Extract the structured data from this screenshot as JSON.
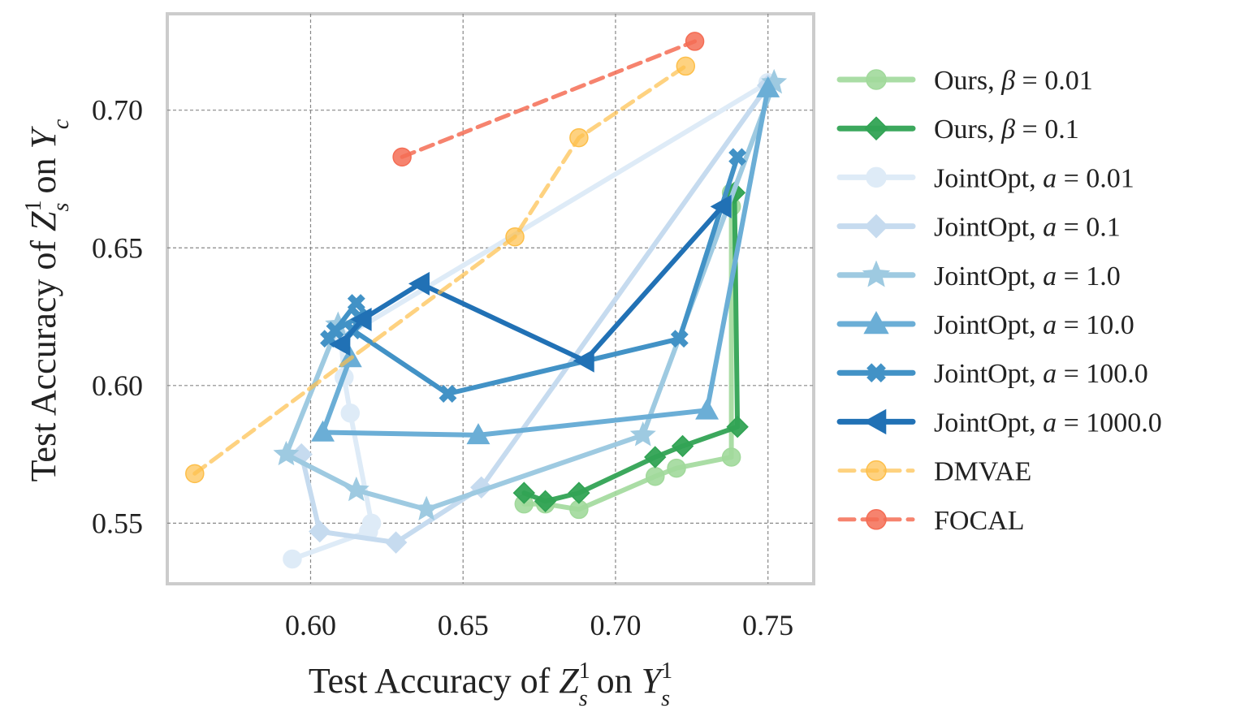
{
  "chart_data": {
    "type": "line",
    "xlabel_parts": [
      "Test Accuracy of ",
      "Z",
      "1",
      "s",
      " on ",
      "Y",
      "1",
      "s"
    ],
    "ylabel_parts": [
      "Test Accuracy of ",
      "Z",
      "1",
      "s",
      " on ",
      "Y",
      "c"
    ],
    "xlim": [
      0.553,
      0.765
    ],
    "ylim": [
      0.528,
      0.735
    ],
    "xticks": [
      0.6,
      0.65,
      0.7,
      0.75
    ],
    "yticks": [
      0.55,
      0.6,
      0.65,
      0.7
    ],
    "xtick_labels": [
      "0.60",
      "0.65",
      "0.70",
      "0.75"
    ],
    "ytick_labels": [
      "0.55",
      "0.60",
      "0.65",
      "0.70"
    ],
    "grid": true,
    "legend_position": "outside-right",
    "series": [
      {
        "name": "Ours, β = 0.01",
        "label_main": "Ours, ",
        "label_var": "β",
        "label_val": " = 0.01",
        "color": "#a1d99b",
        "marker": "circle",
        "dashed": false,
        "lw": 6,
        "opacity": 0.9,
        "x": [
          0.67,
          0.677,
          0.688,
          0.713,
          0.72,
          0.738,
          0.738,
          0.738
        ],
        "y": [
          0.557,
          0.557,
          0.555,
          0.567,
          0.57,
          0.574,
          0.665,
          0.67
        ]
      },
      {
        "name": "Ours, β = 0.1",
        "label_main": "Ours, ",
        "label_var": "β",
        "label_val": " = 0.1",
        "color": "#31a354",
        "marker": "diamond",
        "dashed": false,
        "lw": 6,
        "opacity": 0.95,
        "x": [
          0.67,
          0.677,
          0.688,
          0.713,
          0.722,
          0.74,
          0.739
        ],
        "y": [
          0.561,
          0.558,
          0.561,
          0.574,
          0.578,
          0.585,
          0.67
        ]
      },
      {
        "name": "JointOpt, a = 0.01",
        "label_main": "JointOpt, ",
        "label_var": "a",
        "label_val": " = 0.01",
        "color": "#deebf7",
        "marker": "circle",
        "dashed": false,
        "lw": 6,
        "opacity": 1,
        "x": [
          0.594,
          0.619,
          0.62,
          0.613,
          0.611,
          0.61,
          0.75
        ],
        "y": [
          0.537,
          0.547,
          0.55,
          0.59,
          0.603,
          0.617,
          0.71
        ]
      },
      {
        "name": "JointOpt, a = 0.1",
        "label_main": "JointOpt, ",
        "label_var": "a",
        "label_val": " = 0.1",
        "color": "#c6dbef",
        "marker": "diamond",
        "dashed": false,
        "lw": 6,
        "opacity": 1,
        "x": [
          0.597,
          0.603,
          0.628,
          0.656,
          0.75
        ],
        "y": [
          0.575,
          0.547,
          0.543,
          0.563,
          0.709
        ]
      },
      {
        "name": "JointOpt, a = 1.0",
        "label_main": "JointOpt, ",
        "label_var": "a",
        "label_val": " = 1.0",
        "color": "#9ecae1",
        "marker": "star",
        "dashed": false,
        "lw": 6,
        "opacity": 1,
        "x": [
          0.609,
          0.592,
          0.615,
          0.638,
          0.709,
          0.752
        ],
        "y": [
          0.622,
          0.575,
          0.562,
          0.555,
          0.582,
          0.71
        ]
      },
      {
        "name": "JointOpt, a = 10.0",
        "label_main": "JointOpt, ",
        "label_var": "a",
        "label_val": " = 10.0",
        "color": "#6baed6",
        "marker": "triangle-up",
        "dashed": false,
        "lw": 6,
        "opacity": 1,
        "x": [
          0.613,
          0.604,
          0.655,
          0.73,
          0.75
        ],
        "y": [
          0.61,
          0.583,
          0.582,
          0.591,
          0.708
        ]
      },
      {
        "name": "JointOpt, a = 100.0",
        "label_main": "JointOpt, ",
        "label_var": "a",
        "label_val": " = 100.0",
        "color": "#4292c6",
        "marker": "cross",
        "dashed": false,
        "lw": 6,
        "opacity": 1,
        "x": [
          0.615,
          0.606,
          0.608,
          0.616,
          0.614,
          0.645,
          0.721,
          0.74
        ],
        "y": [
          0.63,
          0.617,
          0.62,
          0.625,
          0.62,
          0.597,
          0.617,
          0.683
        ]
      },
      {
        "name": "JointOpt, a = 1000.0",
        "label_main": "JointOpt, ",
        "label_var": "a",
        "label_val": " = 1000.0",
        "color": "#2171b5",
        "marker": "triangle-left",
        "dashed": false,
        "lw": 6,
        "opacity": 1,
        "x": [
          0.61,
          0.617,
          0.636,
          0.69,
          0.735
        ],
        "y": [
          0.615,
          0.624,
          0.637,
          0.609,
          0.665
        ]
      },
      {
        "name": "DMVAE",
        "label_main": "DMVAE",
        "label_var": "",
        "label_val": "",
        "color": "#fdbf4a",
        "marker": "circle",
        "dashed": true,
        "lw": 5,
        "opacity": 0.7,
        "x": [
          0.562,
          0.667,
          0.688,
          0.723
        ],
        "y": [
          0.568,
          0.654,
          0.69,
          0.716
        ]
      },
      {
        "name": "FOCAL",
        "label_main": "FOCAL",
        "label_var": "",
        "label_val": "",
        "color": "#f46d55",
        "marker": "circle",
        "dashed": true,
        "lw": 5,
        "opacity": 0.85,
        "x": [
          0.63,
          0.726
        ],
        "y": [
          0.683,
          0.725
        ]
      }
    ]
  }
}
